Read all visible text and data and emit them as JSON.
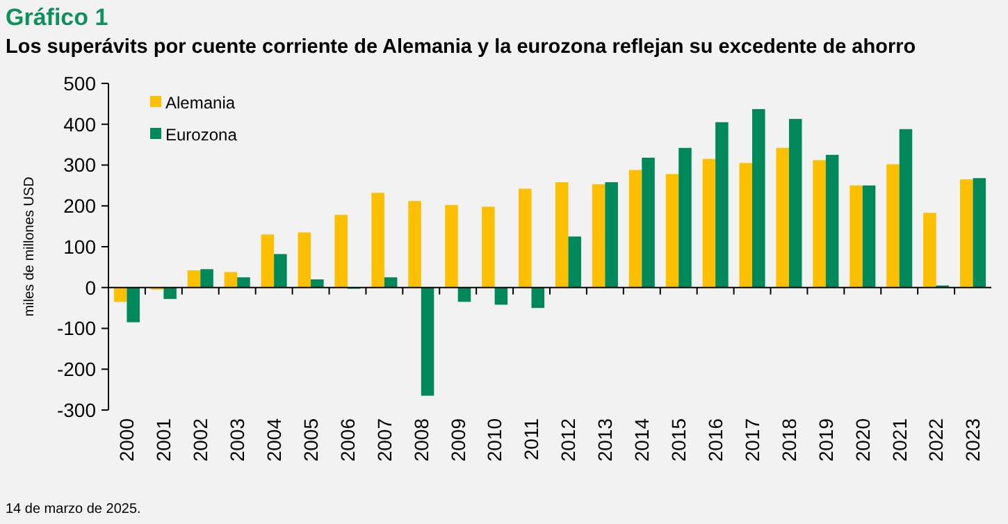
{
  "chart_data": {
    "type": "bar",
    "title": "Gráfico 1",
    "subtitle": "Los superávits por cuente corriente de Alemania y la eurozona reflejan su excedente de ahorro",
    "ylabel": "miles de millones USD",
    "categories": [
      "2000",
      "2001",
      "2002",
      "2003",
      "2004",
      "2005",
      "2006",
      "2007",
      "2008",
      "2009",
      "2010",
      "2011",
      "2012",
      "2013",
      "2014",
      "2015",
      "2016",
      "2017",
      "2018",
      "2019",
      "2020",
      "2021",
      "2022",
      "2023"
    ],
    "series": [
      {
        "name": "Alemania",
        "color": "#fcc000",
        "values": [
          -35,
          -5,
          42,
          38,
          130,
          135,
          178,
          232,
          212,
          202,
          198,
          242,
          258,
          253,
          288,
          278,
          315,
          305,
          342,
          312,
          250,
          302,
          183,
          265
        ]
      },
      {
        "name": "Eurozona",
        "color": "#00875a",
        "values": [
          -85,
          -28,
          45,
          25,
          82,
          20,
          -3,
          25,
          -265,
          -35,
          -42,
          -50,
          125,
          258,
          318,
          342,
          405,
          437,
          413,
          325,
          250,
          388,
          5,
          268
        ]
      }
    ],
    "ylim": [
      -300,
      500
    ],
    "yticks": [
      -300,
      -200,
      -100,
      0,
      100,
      200,
      300,
      400,
      500
    ],
    "legend": "top left",
    "annotations": [
      "14 de marzo de 2025."
    ]
  }
}
